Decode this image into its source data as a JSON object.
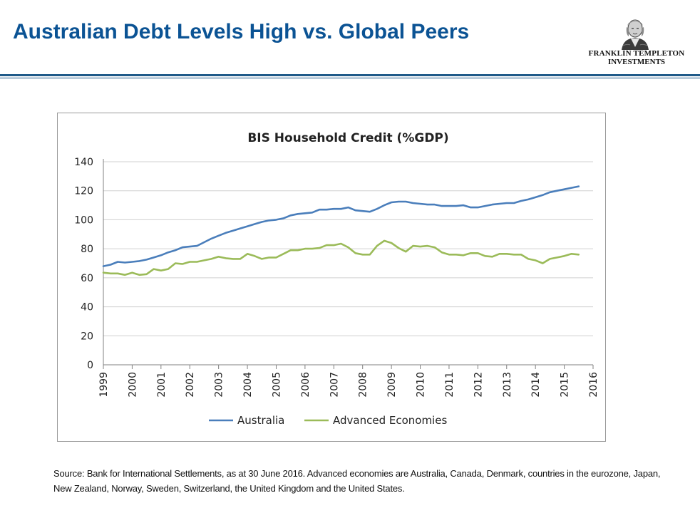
{
  "slide": {
    "title": "Australian Debt Levels High vs. Global Peers",
    "logo_line1": "FRANKLIN TEMPLETON",
    "logo_line2": "INVESTMENTS",
    "logo_icon": "portrait-icon",
    "source_note": "Source: Bank for International Settlements, as at 30 June 2016. Advanced economies are Australia, Canada, Denmark, countries in the eurozone, Japan, New Zealand, Norway, Sweden, Switzerland, the United Kingdom and the United States."
  },
  "chart_data": {
    "type": "line",
    "title": "BIS Household Credit (%GDP)",
    "xlabel": "",
    "ylabel": "",
    "ylim": [
      0,
      140
    ],
    "yticks": [
      0,
      20,
      40,
      60,
      80,
      100,
      120,
      140
    ],
    "xlim": [
      1999,
      2016
    ],
    "xticks": [
      1999,
      2000,
      2001,
      2002,
      2003,
      2004,
      2005,
      2006,
      2007,
      2008,
      2009,
      2010,
      2011,
      2012,
      2013,
      2014,
      2015,
      2016
    ],
    "grid": true,
    "legend_position": "bottom",
    "series": [
      {
        "name": "Australia",
        "color": "#4a7ebb",
        "x": [
          1999.0,
          1999.25,
          1999.5,
          1999.75,
          2000.0,
          2000.25,
          2000.5,
          2000.75,
          2001.0,
          2001.25,
          2001.5,
          2001.75,
          2002.0,
          2002.25,
          2002.5,
          2002.75,
          2003.0,
          2003.25,
          2003.5,
          2003.75,
          2004.0,
          2004.25,
          2004.5,
          2004.75,
          2005.0,
          2005.25,
          2005.5,
          2005.75,
          2006.0,
          2006.25,
          2006.5,
          2006.75,
          2007.0,
          2007.25,
          2007.5,
          2007.75,
          2008.0,
          2008.25,
          2008.5,
          2008.75,
          2009.0,
          2009.25,
          2009.5,
          2009.75,
          2010.0,
          2010.25,
          2010.5,
          2010.75,
          2011.0,
          2011.25,
          2011.5,
          2011.75,
          2012.0,
          2012.25,
          2012.5,
          2012.75,
          2013.0,
          2013.25,
          2013.5,
          2013.75,
          2014.0,
          2014.25,
          2014.5,
          2014.75,
          2015.0,
          2015.25,
          2015.5
        ],
        "values": [
          68,
          69,
          71,
          70.5,
          71,
          71.5,
          72.5,
          74,
          75.5,
          77.5,
          79,
          81,
          81.5,
          82,
          84.5,
          87,
          89,
          91,
          92.5,
          94,
          95.5,
          97,
          98.5,
          99.5,
          100,
          101,
          103,
          104,
          104.5,
          105,
          107,
          107,
          107.5,
          107.5,
          108.5,
          106.5,
          106,
          105.5,
          107.5,
          110,
          112,
          112.5,
          112.5,
          111.5,
          111,
          110.5,
          110.5,
          109.5,
          109.5,
          109.5,
          110,
          108.5,
          108.5,
          109.5,
          110.5,
          111,
          111.5,
          111.5,
          113,
          114,
          115.5,
          117,
          119,
          120,
          121,
          122,
          123
        ]
      },
      {
        "name": "Advanced Economies",
        "color": "#9bbb59",
        "x": [
          1999.0,
          1999.25,
          1999.5,
          1999.75,
          2000.0,
          2000.25,
          2000.5,
          2000.75,
          2001.0,
          2001.25,
          2001.5,
          2001.75,
          2002.0,
          2002.25,
          2002.5,
          2002.75,
          2003.0,
          2003.25,
          2003.5,
          2003.75,
          2004.0,
          2004.25,
          2004.5,
          2004.75,
          2005.0,
          2005.25,
          2005.5,
          2005.75,
          2006.0,
          2006.25,
          2006.5,
          2006.75,
          2007.0,
          2007.25,
          2007.5,
          2007.75,
          2008.0,
          2008.25,
          2008.5,
          2008.75,
          2009.0,
          2009.25,
          2009.5,
          2009.75,
          2010.0,
          2010.25,
          2010.5,
          2010.75,
          2011.0,
          2011.25,
          2011.5,
          2011.75,
          2012.0,
          2012.25,
          2012.5,
          2012.75,
          2013.0,
          2013.25,
          2013.5,
          2013.75,
          2014.0,
          2014.25,
          2014.5,
          2014.75,
          2015.0,
          2015.25,
          2015.5
        ],
        "values": [
          63.5,
          63,
          63,
          62,
          63.5,
          62,
          62.5,
          66,
          65,
          66,
          70,
          69.5,
          71,
          71,
          72,
          73,
          74.5,
          73.5,
          73,
          73,
          76.5,
          75,
          73,
          74,
          74,
          76.5,
          79,
          79,
          80,
          80,
          80.5,
          82.5,
          82.5,
          83.5,
          81,
          77,
          76,
          76,
          82,
          85.5,
          84,
          80.5,
          78,
          82,
          81.5,
          82,
          81,
          77.5,
          76,
          76,
          75.5,
          77,
          77,
          75,
          74.5,
          76.5,
          76.5,
          76,
          76,
          73,
          72,
          70,
          73,
          74,
          75,
          76.5,
          76
        ]
      }
    ]
  }
}
